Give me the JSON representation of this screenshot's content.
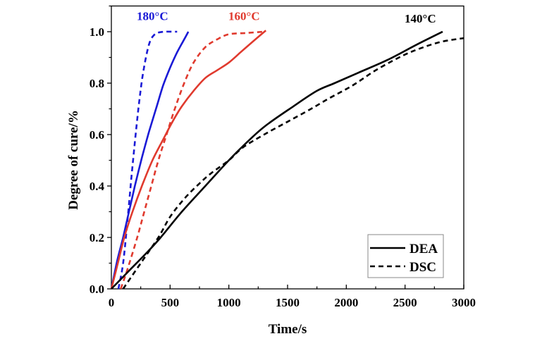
{
  "chart_data": {
    "type": "line",
    "title": "",
    "xlabel": "Time/s",
    "ylabel": "Degree of cure/%",
    "xlim": [
      0,
      3000
    ],
    "ylim": [
      0,
      1.1
    ],
    "xticks": [
      0,
      500,
      1000,
      1500,
      2000,
      2500,
      3000
    ],
    "xtick_labels": [
      "0",
      "500",
      "1000",
      "1500",
      "2000",
      "2500",
      "3000"
    ],
    "yticks": [
      0.0,
      0.2,
      0.4,
      0.6,
      0.8,
      1.0
    ],
    "ytick_labels": [
      "0.0",
      "0.2",
      "0.4",
      "0.6",
      "0.8",
      "1.0"
    ],
    "grid": false,
    "legend": {
      "position": "bottom-right",
      "entries": [
        {
          "label": "DEA",
          "style": "solid"
        },
        {
          "label": "DSC",
          "style": "dashed"
        }
      ]
    },
    "annotations": [
      {
        "text": "180°C",
        "x": 350,
        "y": 1.045,
        "color": "#1a1ad6"
      },
      {
        "text": "160°C",
        "x": 1130,
        "y": 1.045,
        "color": "#e03a2e"
      },
      {
        "text": "140°C",
        "x": 2630,
        "y": 1.035,
        "color": "#000000"
      }
    ],
    "series": [
      {
        "name": "180°C DEA",
        "method": "DEA",
        "temperature": "180°C",
        "color": "#1a1ad6",
        "style": "solid",
        "x": [
          0,
          50,
          100,
          150,
          200,
          260,
          320,
          380,
          440,
          500,
          560,
          620,
          655
        ],
        "y": [
          0,
          0.11,
          0.2,
          0.3,
          0.4,
          0.51,
          0.61,
          0.7,
          0.79,
          0.86,
          0.92,
          0.97,
          1.0
        ]
      },
      {
        "name": "180°C DSC",
        "method": "DSC",
        "temperature": "180°C",
        "color": "#1a1ad6",
        "style": "dashed",
        "x": [
          60,
          100,
          140,
          170,
          200,
          230,
          260,
          290,
          320,
          350,
          390,
          450,
          520,
          560
        ],
        "y": [
          0,
          0.1,
          0.28,
          0.43,
          0.57,
          0.7,
          0.81,
          0.89,
          0.95,
          0.98,
          0.995,
          1.0,
          1.0,
          1.0
        ]
      },
      {
        "name": "160°C DEA",
        "method": "DEA",
        "temperature": "160°C",
        "color": "#e03a2e",
        "style": "solid",
        "x": [
          0,
          50,
          110,
          180,
          260,
          350,
          440,
          520,
          600,
          700,
          800,
          900,
          1000,
          1100,
          1200,
          1315
        ],
        "y": [
          0,
          0.09,
          0.2,
          0.3,
          0.4,
          0.5,
          0.58,
          0.65,
          0.71,
          0.77,
          0.82,
          0.85,
          0.88,
          0.92,
          0.96,
          1.005
        ]
      },
      {
        "name": "160°C DSC",
        "method": "DSC",
        "temperature": "160°C",
        "color": "#e03a2e",
        "style": "dashed",
        "x": [
          80,
          140,
          220,
          280,
          340,
          400,
          470,
          540,
          620,
          700,
          800,
          900,
          1000,
          1150,
          1300
        ],
        "y": [
          0,
          0.08,
          0.2,
          0.3,
          0.4,
          0.5,
          0.6,
          0.7,
          0.8,
          0.88,
          0.94,
          0.97,
          0.99,
          0.995,
          1.0
        ]
      },
      {
        "name": "140°C DEA",
        "method": "DEA",
        "temperature": "140°C",
        "color": "#000000",
        "style": "solid",
        "x": [
          0,
          150,
          300,
          420,
          600,
          800,
          1000,
          1120,
          1300,
          1550,
          1750,
          1900,
          2100,
          2350,
          2600,
          2820
        ],
        "y": [
          0,
          0.07,
          0.14,
          0.2,
          0.3,
          0.4,
          0.5,
          0.555,
          0.63,
          0.71,
          0.77,
          0.8,
          0.84,
          0.89,
          0.95,
          1.0
        ]
      },
      {
        "name": "140°C DSC",
        "method": "DSC",
        "temperature": "140°C",
        "color": "#000000",
        "style": "dashed",
        "x": [
          100,
          250,
          400,
          500,
          620,
          750,
          850,
          1000,
          1120,
          1300,
          1500,
          1700,
          1850,
          2050,
          2250,
          2450,
          2600,
          2800,
          3000
        ],
        "y": [
          0,
          0.1,
          0.2,
          0.28,
          0.35,
          0.41,
          0.45,
          0.5,
          0.55,
          0.6,
          0.65,
          0.7,
          0.74,
          0.79,
          0.85,
          0.9,
          0.93,
          0.96,
          0.975
        ]
      }
    ]
  }
}
